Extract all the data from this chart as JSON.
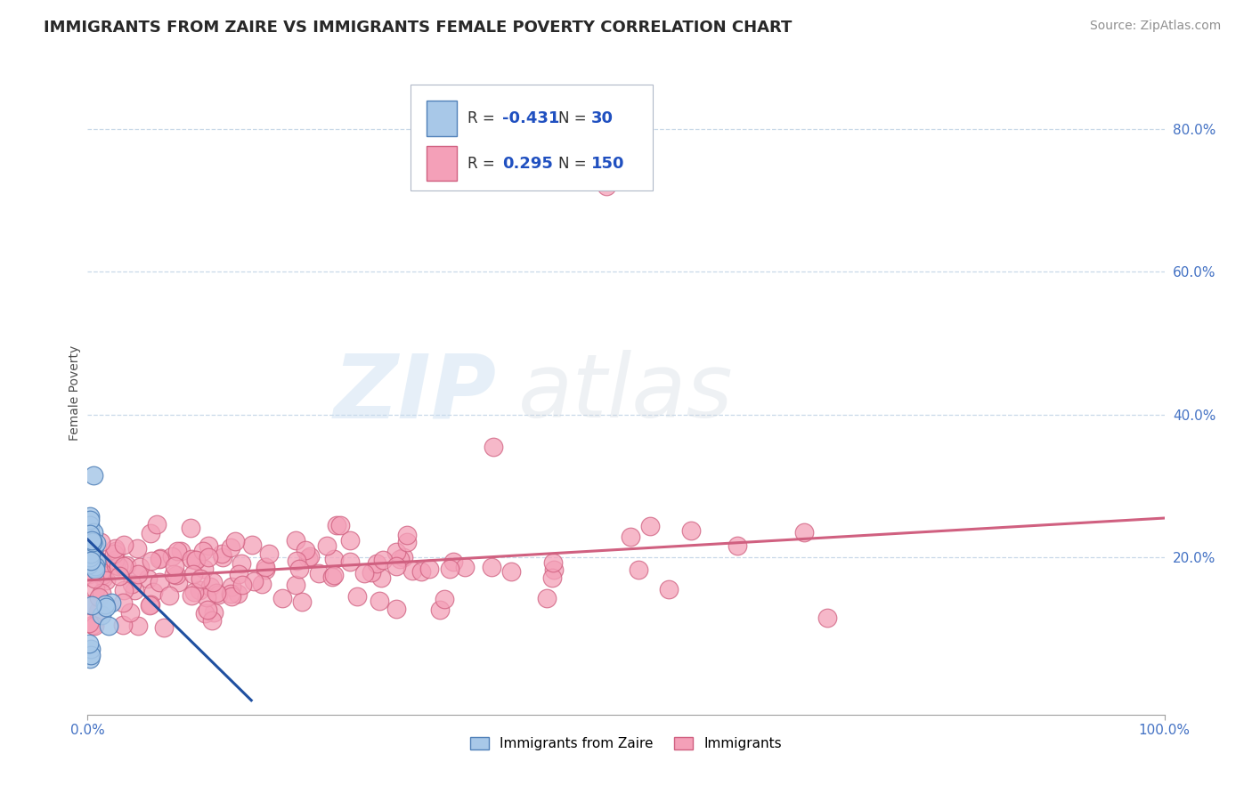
{
  "title": "IMMIGRANTS FROM ZAIRE VS IMMIGRANTS FEMALE POVERTY CORRELATION CHART",
  "source": "Source: ZipAtlas.com",
  "ylabel": "Female Poverty",
  "xlim": [
    0.0,
    1.0
  ],
  "ylim": [
    -0.02,
    0.88
  ],
  "yticks": [
    0.2,
    0.4,
    0.6,
    0.8
  ],
  "ytick_labels": [
    "20.0%",
    "40.0%",
    "60.0%",
    "80.0%"
  ],
  "xticks": [
    0.0,
    1.0
  ],
  "xtick_labels": [
    "0.0%",
    "100.0%"
  ],
  "legend_label1": "Immigrants from Zaire",
  "legend_label2": "Immigrants",
  "color_blue": "#a8c8e8",
  "color_pink": "#f4a0b8",
  "color_line_blue": "#2050a0",
  "color_line_pink": "#d06080",
  "title_fontsize": 13,
  "source_fontsize": 10,
  "blue_seed": 42,
  "pink_seed": 7
}
